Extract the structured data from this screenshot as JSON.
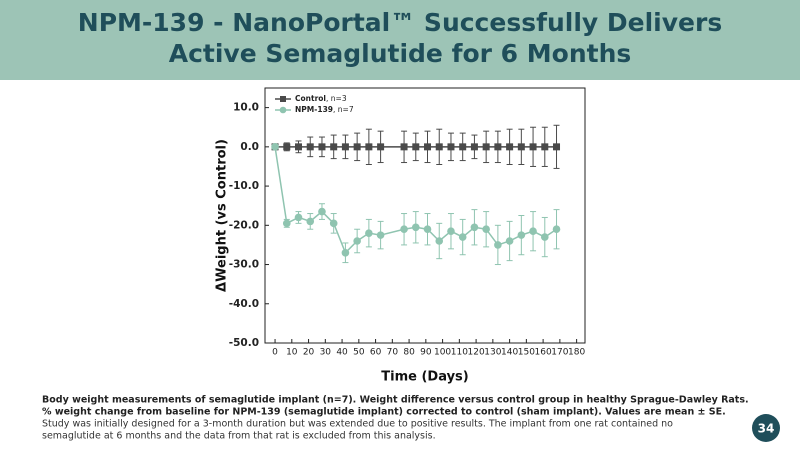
{
  "title": [
    "NPM-139 - NanoPortal™ Successfully Delivers",
    "Active Semaglutide for 6 Months"
  ],
  "chart_data": {
    "type": "line",
    "x_label": "Time (Days)",
    "y_label": "ΔWeight (vs Control)",
    "xlim": [
      -6,
      185
    ],
    "ylim": [
      -50,
      15
    ],
    "xticks": [
      0,
      10,
      20,
      30,
      40,
      50,
      60,
      70,
      80,
      90,
      100,
      110,
      120,
      130,
      140,
      150,
      160,
      170,
      180
    ],
    "yticks": [
      {
        "value": 10,
        "label": "10.0"
      },
      {
        "value": 0,
        "label": "0.0"
      },
      {
        "value": -10,
        "label": "-10.0"
      },
      {
        "value": -20,
        "label": "-20.0"
      },
      {
        "value": -30,
        "label": "-30.0"
      },
      {
        "value": -40,
        "label": "-40.0"
      },
      {
        "value": -50,
        "label": "-50.0"
      }
    ],
    "legend": "top-left",
    "series": [
      {
        "name": "Control",
        "legend_suffix": ", n=3",
        "color": "#4a4a4a",
        "marker": "square",
        "x": [
          0,
          7,
          14,
          21,
          28,
          35,
          42,
          49,
          56,
          63,
          77,
          84,
          91,
          98,
          105,
          112,
          119,
          126,
          133,
          140,
          147,
          154,
          161,
          168
        ],
        "values": [
          0,
          0,
          0,
          0,
          0,
          0,
          0,
          0,
          0,
          0,
          0,
          0,
          0,
          0,
          0,
          0,
          0,
          0,
          0,
          0,
          0,
          0,
          0,
          0
        ],
        "errors": [
          0,
          1,
          1.5,
          2.5,
          2.5,
          3,
          3,
          3.5,
          4.5,
          4,
          4,
          3.5,
          4,
          4.5,
          3.5,
          3.5,
          3,
          4,
          4,
          4.5,
          4.5,
          5,
          5,
          5.5
        ]
      },
      {
        "name": "NPM-139",
        "legend_suffix": ", n=7",
        "color": "#8fc4b0",
        "marker": "circle",
        "x": [
          0,
          7,
          14,
          21,
          28,
          35,
          42,
          49,
          56,
          63,
          77,
          84,
          91,
          98,
          105,
          112,
          119,
          126,
          133,
          140,
          147,
          154,
          161,
          168
        ],
        "values": [
          0,
          -19.5,
          -18,
          -19,
          -16.5,
          -19.5,
          -27,
          -24,
          -22,
          -22.5,
          -21,
          -20.5,
          -21,
          -24,
          -21.5,
          -23,
          -20.5,
          -21,
          -25,
          -24,
          -22.5,
          -21.5,
          -23,
          -21
        ],
        "errors": [
          0,
          1,
          1.5,
          2,
          2,
          2.5,
          2.5,
          3,
          3.5,
          3.5,
          4,
          4,
          4,
          4.5,
          4.5,
          4.5,
          4.5,
          4.5,
          5,
          5,
          5,
          5,
          5,
          5
        ]
      }
    ]
  },
  "caption": {
    "bold": [
      "Body weight measurements of semaglutide implant (n=7). Weight difference versus control group in healthy Sprague-Dawley Rats.",
      "% weight change from baseline for NPM-139 (semaglutide implant) corrected to control (sham implant). Values are mean ± SE."
    ],
    "text": [
      "Study was initially designed for a 3-month duration but was extended due to positive results. The implant from one rat contained no",
      "semaglutide at 6 months and the data from that rat is excluded from this analysis."
    ]
  },
  "page_number": "34"
}
